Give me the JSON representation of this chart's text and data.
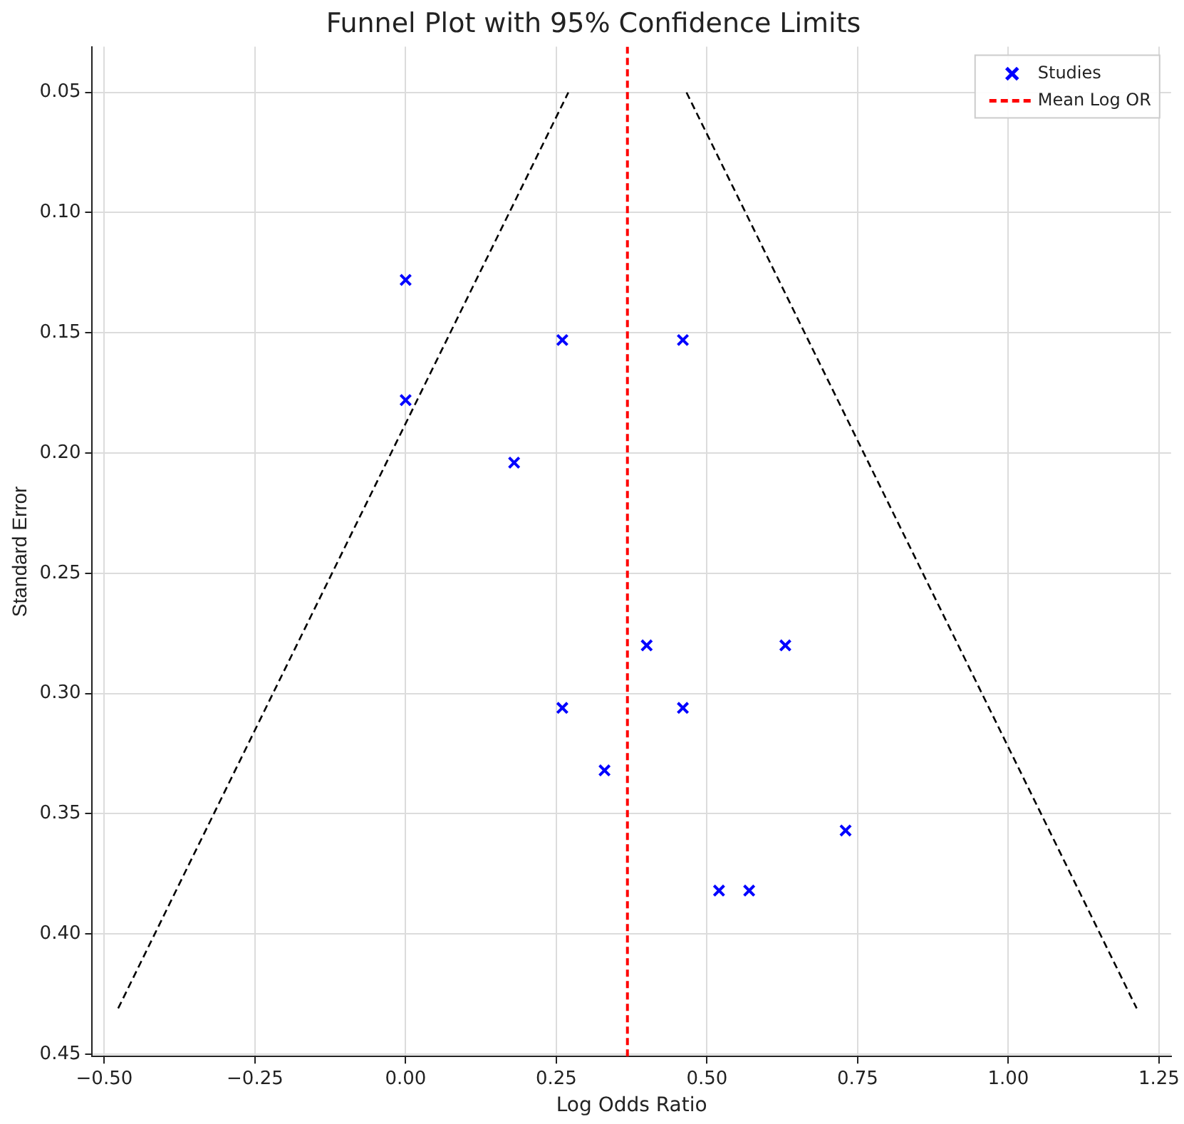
{
  "chart_data": {
    "type": "scatter",
    "title": "Funnel Plot with 95% Confidence Limits",
    "xlabel": "Log Odds Ratio",
    "ylabel": "Standard Error",
    "xlim": [
      -0.52,
      1.27
    ],
    "xticks": [
      {
        "value": -0.5,
        "label": "−0.50"
      },
      {
        "value": -0.25,
        "label": "−0.25"
      },
      {
        "value": 0,
        "label": "0.00"
      },
      {
        "value": 0.25,
        "label": "0.25"
      },
      {
        "value": 0.5,
        "label": "0.50"
      },
      {
        "value": 0.75,
        "label": "0.75"
      },
      {
        "value": 1,
        "label": "1.00"
      },
      {
        "value": 1.25,
        "label": "1.25"
      }
    ],
    "ylim": [
      0.451,
      0.031
    ],
    "yticks": [
      {
        "value": 0.05,
        "label": "0.05"
      },
      {
        "value": 0.1,
        "label": "0.10"
      },
      {
        "value": 0.15,
        "label": "0.15"
      },
      {
        "value": 0.2,
        "label": "0.20"
      },
      {
        "value": 0.25,
        "label": "0.25"
      },
      {
        "value": 0.3,
        "label": "0.30"
      },
      {
        "value": 0.35,
        "label": "0.35"
      },
      {
        "value": 0.4,
        "label": "0.40"
      },
      {
        "value": 0.45,
        "label": "0.45"
      }
    ],
    "grid": true,
    "legend": "top right",
    "series": [
      {
        "name": "Studies",
        "color": "#0000ff",
        "marker": "cross",
        "x": [
          0.0,
          0.26,
          0.46,
          0.0,
          0.18,
          0.4,
          0.63,
          0.26,
          0.46,
          0.33,
          0.73,
          0.52,
          0.57
        ],
        "values": [
          0.128,
          0.153,
          0.153,
          0.178,
          0.204,
          0.28,
          0.28,
          0.306,
          0.306,
          0.332,
          0.357,
          0.382,
          0.382
        ]
      },
      {
        "type": "line",
        "color": "#000000",
        "line_style": "dashed",
        "marker": "none",
        "x": [
          -0.477,
          0.27
        ],
        "values": [
          0.431,
          0.05
        ]
      },
      {
        "type": "line",
        "color": "#000000",
        "line_style": "dashed",
        "marker": "none",
        "x": [
          0.466,
          1.213
        ],
        "values": [
          0.05,
          0.431
        ]
      },
      {
        "type": "line",
        "name": "Mean Log OR",
        "color": "#ff0000",
        "line_style": "dashed",
        "marker": "none",
        "x": [
          0.368,
          0.368
        ],
        "values": [
          0.451,
          0.031
        ]
      }
    ]
  }
}
